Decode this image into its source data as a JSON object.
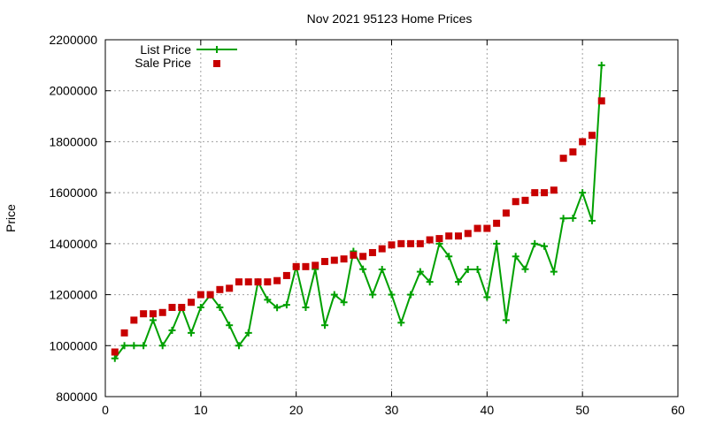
{
  "chart_data": {
    "type": "line",
    "title": "Nov 2021 95123 Home Prices",
    "xlabel": "",
    "ylabel": "Price",
    "xlim": [
      0,
      60
    ],
    "ylim": [
      800000,
      2200000
    ],
    "x_ticks": [
      0,
      10,
      20,
      30,
      40,
      50,
      60
    ],
    "y_ticks": [
      800000,
      1000000,
      1200000,
      1400000,
      1600000,
      1800000,
      2000000,
      2200000
    ],
    "grid": true,
    "legend_position": "top-left",
    "series": [
      {
        "name": "List Price",
        "style": "line+cross",
        "color": "#00a000",
        "x": [
          1,
          2,
          3,
          4,
          5,
          6,
          7,
          8,
          9,
          10,
          11,
          12,
          13,
          14,
          15,
          16,
          17,
          18,
          19,
          20,
          21,
          22,
          23,
          24,
          25,
          26,
          27,
          28,
          29,
          30,
          31,
          32,
          33,
          34,
          35,
          36,
          37,
          38,
          39,
          40,
          41,
          42,
          43,
          44,
          45,
          46,
          47,
          48,
          49,
          50,
          51,
          52
        ],
        "values": [
          950000,
          1000000,
          1000000,
          1000000,
          1100000,
          1000000,
          1060000,
          1150000,
          1050000,
          1150000,
          1199000,
          1150000,
          1080000,
          1000000,
          1050000,
          1250000,
          1180000,
          1149000,
          1160000,
          1310000,
          1150000,
          1300000,
          1080000,
          1200000,
          1170000,
          1370000,
          1300000,
          1200000,
          1299000,
          1200000,
          1090000,
          1200000,
          1290000,
          1250000,
          1400000,
          1350000,
          1250000,
          1299000,
          1299000,
          1190000,
          1400000,
          1100000,
          1350000,
          1300000,
          1400000,
          1390000,
          1290000,
          1499000,
          1500000,
          1600000,
          1490000,
          2100000
        ]
      },
      {
        "name": "Sale Price",
        "style": "square-points",
        "color": "#c80000",
        "x": [
          1,
          2,
          3,
          4,
          5,
          6,
          7,
          8,
          9,
          10,
          11,
          12,
          13,
          14,
          15,
          16,
          17,
          18,
          19,
          20,
          21,
          22,
          23,
          24,
          25,
          26,
          27,
          28,
          29,
          30,
          31,
          32,
          33,
          34,
          35,
          36,
          37,
          38,
          39,
          40,
          41,
          42,
          43,
          44,
          45,
          46,
          47,
          48,
          49,
          50,
          51,
          52
        ],
        "values": [
          975000,
          1050000,
          1100000,
          1125000,
          1125000,
          1130000,
          1150000,
          1150000,
          1170000,
          1200000,
          1200000,
          1220000,
          1225000,
          1250000,
          1250000,
          1250000,
          1250000,
          1255000,
          1275000,
          1310000,
          1310000,
          1315000,
          1330000,
          1335000,
          1340000,
          1355000,
          1350000,
          1365000,
          1380000,
          1395000,
          1400000,
          1400000,
          1400000,
          1415000,
          1420000,
          1430000,
          1430000,
          1440000,
          1460000,
          1460000,
          1480000,
          1520000,
          1565000,
          1570000,
          1600000,
          1600000,
          1610000,
          1735000,
          1760000,
          1800000,
          1825000,
          1960000
        ]
      }
    ]
  }
}
